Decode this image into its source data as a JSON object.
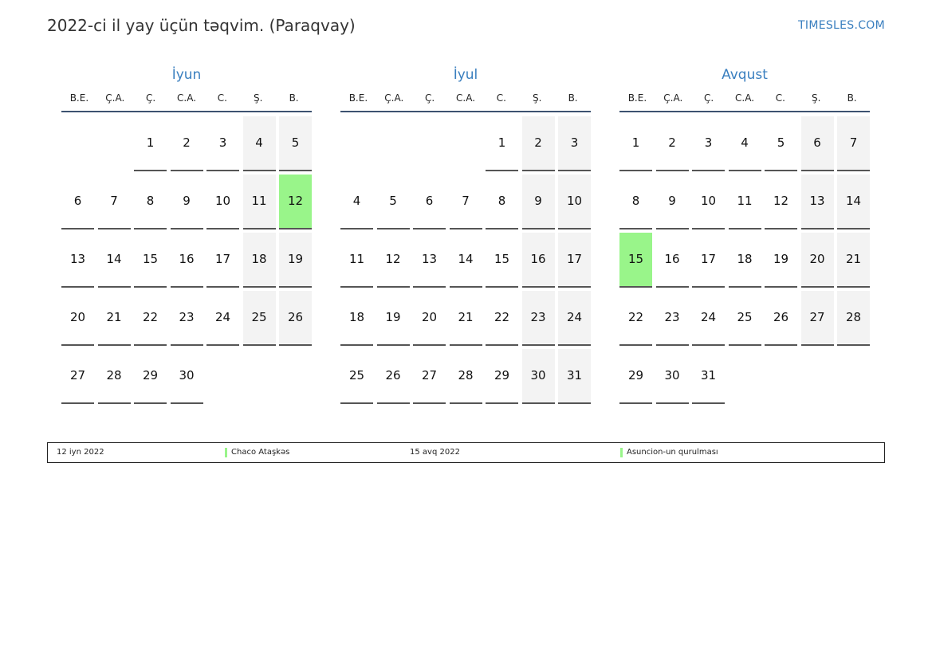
{
  "header": {
    "title": "2022-ci il yay üçün təqvim. (Paraqvay)",
    "site": "TIMESLES.COM"
  },
  "weekdays": [
    "B.E.",
    "Ç.A.",
    "Ç.",
    "C.A.",
    "C.",
    "Ş.",
    "B."
  ],
  "months": [
    {
      "name": "İyun",
      "weeks": [
        [
          "",
          "",
          "1",
          "2",
          "3",
          "4",
          "5"
        ],
        [
          "6",
          "7",
          "8",
          "9",
          "10",
          "11",
          "12"
        ],
        [
          "13",
          "14",
          "15",
          "16",
          "17",
          "18",
          "19"
        ],
        [
          "20",
          "21",
          "22",
          "23",
          "24",
          "25",
          "26"
        ],
        [
          "27",
          "28",
          "29",
          "30",
          "",
          "",
          ""
        ]
      ],
      "holidays": [
        "12"
      ]
    },
    {
      "name": "İyul",
      "weeks": [
        [
          "",
          "",
          "",
          "",
          "1",
          "2",
          "3"
        ],
        [
          "4",
          "5",
          "6",
          "7",
          "8",
          "9",
          "10"
        ],
        [
          "11",
          "12",
          "13",
          "14",
          "15",
          "16",
          "17"
        ],
        [
          "18",
          "19",
          "20",
          "21",
          "22",
          "23",
          "24"
        ],
        [
          "25",
          "26",
          "27",
          "28",
          "29",
          "30",
          "31"
        ]
      ],
      "holidays": []
    },
    {
      "name": "Avqust",
      "weeks": [
        [
          "1",
          "2",
          "3",
          "4",
          "5",
          "6",
          "7"
        ],
        [
          "8",
          "9",
          "10",
          "11",
          "12",
          "13",
          "14"
        ],
        [
          "15",
          "16",
          "17",
          "18",
          "19",
          "20",
          "21"
        ],
        [
          "22",
          "23",
          "24",
          "25",
          "26",
          "27",
          "28"
        ],
        [
          "29",
          "30",
          "31",
          "",
          "",
          "",
          ""
        ]
      ],
      "holidays": [
        "15"
      ]
    }
  ],
  "colors": {
    "accent": "#3a7fbf",
    "holiday": "#99f58a",
    "weekend": "#f3f3f3"
  },
  "legend": [
    {
      "date": "12 iyn 2022",
      "name": "Chaco Ataşkəs"
    },
    {
      "date": "15 avq 2022",
      "name": "Asuncion-un qurulması"
    }
  ]
}
